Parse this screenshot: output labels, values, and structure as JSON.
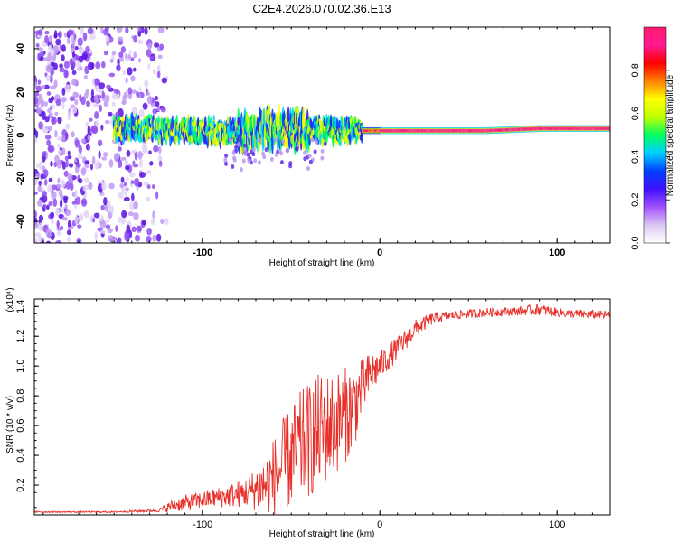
{
  "title": "C2E4.2026.070.02.36.E13",
  "chart_data": [
    {
      "type": "heatmap",
      "title": "C2E4.2026.070.02.36.E13",
      "xlabel": "Height of straight line (km)",
      "ylabel": "Frequency (Hz)",
      "xlim": [
        -195,
        130
      ],
      "ylim": [
        -50,
        50
      ],
      "xticks": [
        -100,
        0,
        100
      ],
      "yticks": [
        -40,
        -20,
        0,
        20,
        40
      ],
      "colorbar": {
        "label": "Normalized spectral amplitude",
        "range": [
          0,
          1
        ],
        "ticks": [
          "0.0",
          "0.2",
          "0.4",
          "0.6",
          "0.8"
        ],
        "colormap": [
          "#ffffff",
          "#dcc8f5",
          "#a050ff",
          "#4010ff",
          "#0040ff",
          "#00d0ff",
          "#00ff60",
          "#c0ff00",
          "#ffff00",
          "#ff8000",
          "#ff0000",
          "#ff1a90",
          "#ff1a70"
        ]
      },
      "signal_band": {
        "description_hidden": true,
        "center_frequency_hz": [
          [
            -150,
            3
          ],
          [
            -110,
            2
          ],
          [
            -80,
            1
          ],
          [
            -60,
            3
          ],
          [
            -40,
            2
          ],
          [
            -20,
            2
          ],
          [
            0,
            2
          ],
          [
            30,
            2
          ],
          [
            60,
            2
          ],
          [
            90,
            3
          ],
          [
            110,
            3
          ],
          [
            130,
            3
          ]
        ],
        "noise_region_x": [
          -195,
          -120
        ]
      }
    },
    {
      "type": "line",
      "xlabel": "Height of straight line (km)",
      "ylabel": "SNR (10 * v/v)",
      "y_multiplier": "(x10⁴)",
      "xlim": [
        -195,
        130
      ],
      "ylim": [
        0,
        1.45
      ],
      "xticks": [
        -100,
        0,
        100
      ],
      "yticks": [
        0.2,
        0.4,
        0.6,
        0.8,
        1.0,
        1.2,
        1.4
      ],
      "series": [
        {
          "name": "SNR",
          "color": "#e8302a",
          "envelope_x": [
            -195,
            -150,
            -125,
            -115,
            -100,
            -90,
            -75,
            -65,
            -55,
            -45,
            -35,
            -25,
            -15,
            -10,
            -5,
            0,
            10,
            20,
            30,
            40,
            60,
            80,
            90,
            100,
            110,
            130
          ],
          "envelope_y": [
            0.02,
            0.02,
            0.03,
            0.07,
            0.1,
            0.12,
            0.15,
            0.2,
            0.32,
            0.45,
            0.55,
            0.62,
            0.72,
            0.85,
            0.95,
            1.0,
            1.12,
            1.25,
            1.32,
            1.34,
            1.36,
            1.37,
            1.38,
            1.36,
            1.35,
            1.34
          ],
          "spread_y": [
            0.005,
            0.005,
            0.01,
            0.05,
            0.06,
            0.07,
            0.1,
            0.2,
            0.32,
            0.38,
            0.4,
            0.35,
            0.3,
            0.2,
            0.15,
            0.1,
            0.08,
            0.06,
            0.04,
            0.03,
            0.03,
            0.03,
            0.04,
            0.03,
            0.03,
            0.03
          ]
        }
      ]
    }
  ]
}
